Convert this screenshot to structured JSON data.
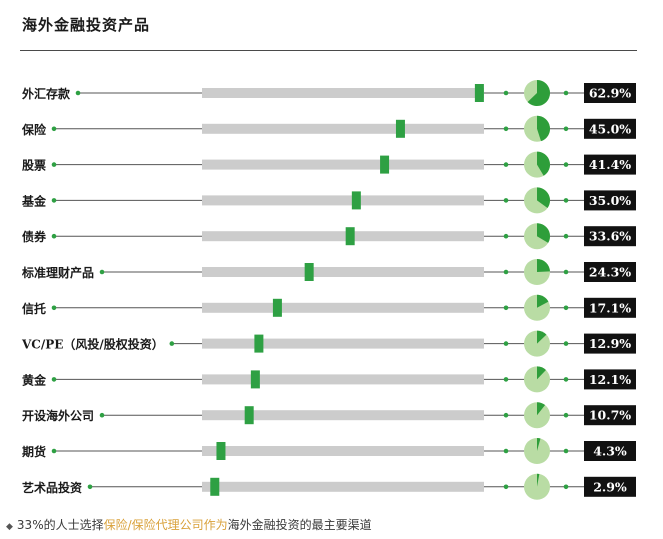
{
  "title": "海外金融投资产品",
  "footnote": {
    "bullet": "◆",
    "pre": "33%的人士选择",
    "highlight": "保险/保险代理公司作为",
    "post": "海外金融投资的最主要渠道"
  },
  "colors": {
    "accent": "#2ea043",
    "track": "#cccccc",
    "pie_bg": "#b9dca4",
    "pie_fill": "#2e9e3a",
    "label_bg": "#111111",
    "line": "#555555"
  },
  "chart_data": {
    "type": "bar",
    "title": "海外金融投资产品",
    "xlabel": "",
    "ylabel": "",
    "ylim": [
      0,
      100
    ],
    "categories": [
      "外汇存款",
      "保险",
      "股票",
      "基金",
      "债券",
      "标准理财产品",
      "信托",
      "VC/PE（风投/股权投资）",
      "黄金",
      "开设海外公司",
      "期货",
      "艺术品投资"
    ],
    "values": [
      62.9,
      45.0,
      41.4,
      35.0,
      33.6,
      24.3,
      17.1,
      12.9,
      12.1,
      10.7,
      4.3,
      2.9
    ],
    "value_labels": [
      "62.9%",
      "45.0%",
      "41.4%",
      "35.0%",
      "33.6%",
      "24.3%",
      "17.1%",
      "12.9%",
      "12.1%",
      "10.7%",
      "4.3%",
      "2.9%"
    ]
  }
}
